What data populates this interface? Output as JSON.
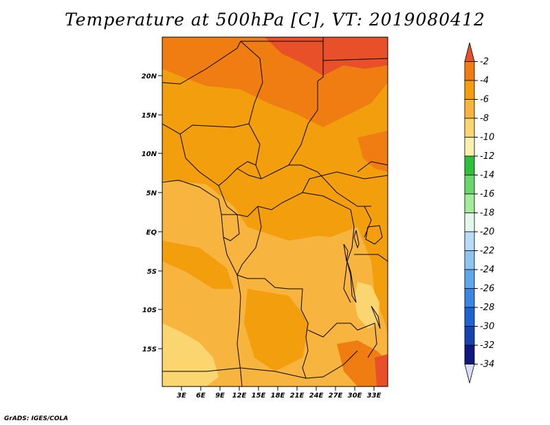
{
  "title": "Temperature at 500hPa [C], VT: 2019080412",
  "credit": "GrADS: IGES/COLA",
  "map": {
    "lat_ticks": [
      "20N",
      "15N",
      "10N",
      "5N",
      "EQ",
      "5S",
      "10S",
      "15S"
    ],
    "lon_ticks": [
      "3E",
      "6E",
      "9E",
      "12E",
      "15E",
      "18E",
      "21E",
      "24E",
      "27E",
      "30E",
      "33E"
    ]
  },
  "colorbar": {
    "labels": [
      "-2",
      "-4",
      "-6",
      "-8",
      "-10",
      "-12",
      "-14",
      "-16",
      "-18",
      "-20",
      "-22",
      "-24",
      "-26",
      "-28",
      "-30",
      "-32",
      "-34"
    ],
    "colors": [
      "#e8502a",
      "#ef7d12",
      "#f39e0c",
      "#f7b53f",
      "#fbd56f",
      "#fdf0ae",
      "#2ebf3c",
      "#6ad76a",
      "#a4eb9c",
      "#e3f8ea",
      "#b8dbf7",
      "#8ec4f0",
      "#5fa7eb",
      "#3a86e0",
      "#1f63cf",
      "#1743b0",
      "#101880",
      "#dcdcf8"
    ]
  },
  "colors": {
    "ocean_light": "#fbd56f",
    "band_minus8": "#f7b53f",
    "band_minus6": "#f39e0c",
    "band_minus4": "#ef7d12",
    "band_minus2": "#e8502a"
  }
}
